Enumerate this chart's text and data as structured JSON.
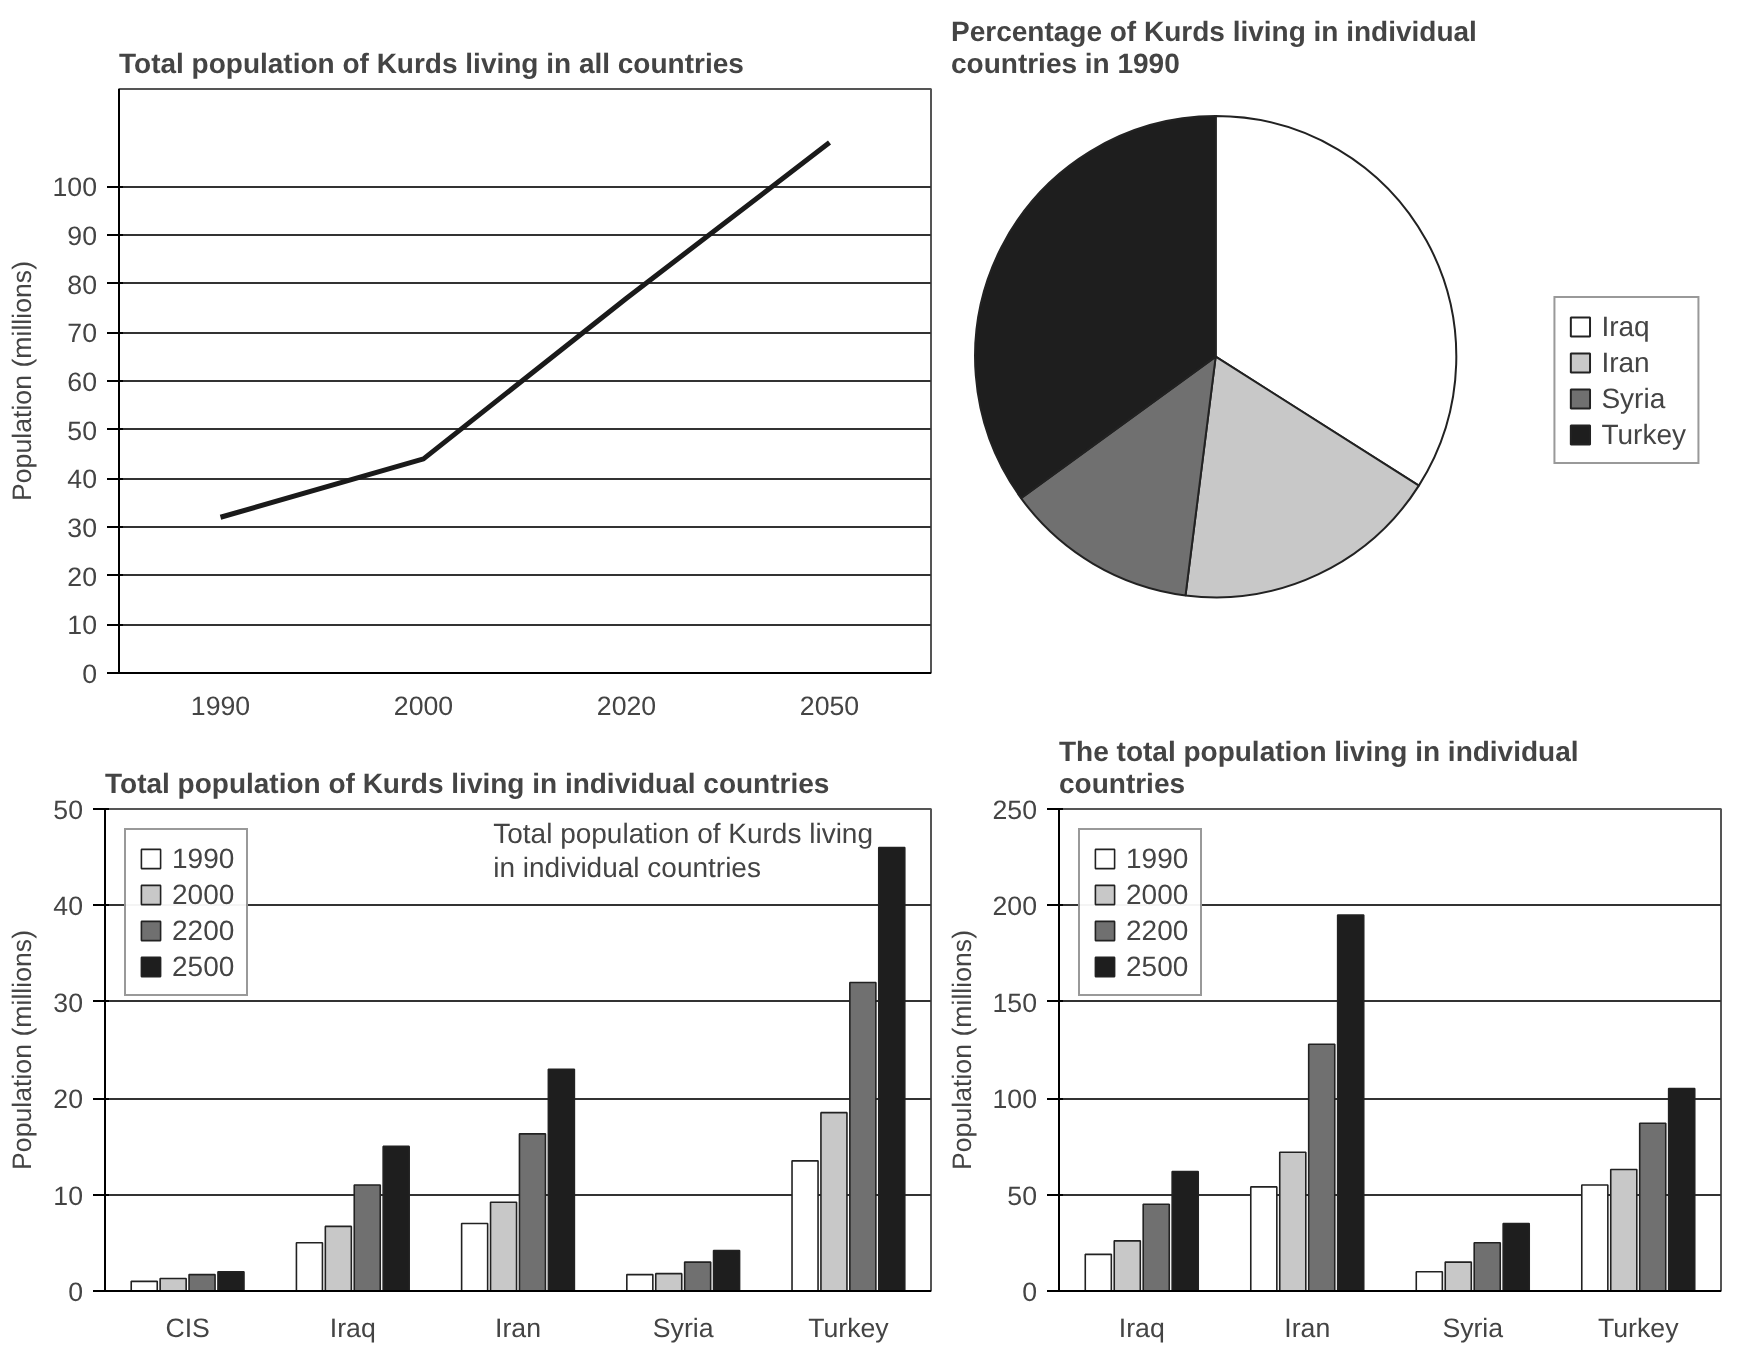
{
  "chart_data": [
    {
      "type": "line",
      "title": "Total population of Kurds living in all countries",
      "ylabel": "Population (millions)",
      "categories": [
        "1990",
        "2000",
        "2020",
        "2050"
      ],
      "series": [
        {
          "color": "#1a1a1a",
          "values": [
            32,
            44,
            77,
            109
          ]
        }
      ],
      "ylim": [
        0,
        120
      ],
      "yticks": [
        0,
        10,
        20,
        30,
        40,
        50,
        60,
        70,
        80,
        90,
        100
      ],
      "grid": "y",
      "legend": false,
      "marker": "none",
      "line_style": "solid"
    },
    {
      "type": "pie",
      "title": "Percentage of Kurds living in individual countries in 1990",
      "categories": [
        "Iraq",
        "Iran",
        "Syria",
        "Turkey"
      ],
      "values": [
        34,
        18,
        13,
        35
      ],
      "colors": [
        "#ffffff",
        "#c8c8c8",
        "#707070",
        "#1e1e1e"
      ],
      "legend": "right"
    },
    {
      "type": "bar",
      "title": "Total population of Kurds living in individual countries",
      "ylabel": "Population (millions)",
      "annotations": [
        "Total population of Kurds living in individual countries"
      ],
      "categories": [
        "CIS",
        "Iraq",
        "Iran",
        "Syria",
        "Turkey"
      ],
      "series": [
        {
          "name": "1990",
          "color": "#ffffff",
          "values": [
            1,
            5,
            7,
            1.7,
            13.5
          ]
        },
        {
          "name": "2000",
          "color": "#c8c8c8",
          "values": [
            1.3,
            6.7,
            9.2,
            1.8,
            18.5
          ]
        },
        {
          "name": "2200",
          "color": "#707070",
          "values": [
            1.7,
            11,
            16.3,
            3,
            32
          ]
        },
        {
          "name": "2500",
          "color": "#1e1e1e",
          "values": [
            2,
            15,
            23,
            4.2,
            46
          ]
        }
      ],
      "ylim": [
        0,
        50
      ],
      "yticks": [
        0,
        10,
        20,
        30,
        40,
        50
      ],
      "grid": "y",
      "legend": "top left"
    },
    {
      "type": "bar",
      "title": "The total population living in individual countries",
      "ylabel": "Population (millions)",
      "categories": [
        "Iraq",
        "Iran",
        "Syria",
        "Turkey"
      ],
      "series": [
        {
          "name": "1990",
          "color": "#ffffff",
          "values": [
            19,
            54,
            10,
            55
          ]
        },
        {
          "name": "2000",
          "color": "#c8c8c8",
          "values": [
            26,
            72,
            15,
            63
          ]
        },
        {
          "name": "2200",
          "color": "#707070",
          "values": [
            45,
            128,
            25,
            87
          ]
        },
        {
          "name": "2500",
          "color": "#1e1e1e",
          "values": [
            62,
            195,
            35,
            105
          ]
        }
      ],
      "ylim": [
        0,
        250
      ],
      "yticks": [
        0,
        50,
        100,
        150,
        200,
        250
      ],
      "grid": "y",
      "legend": "top left"
    }
  ]
}
